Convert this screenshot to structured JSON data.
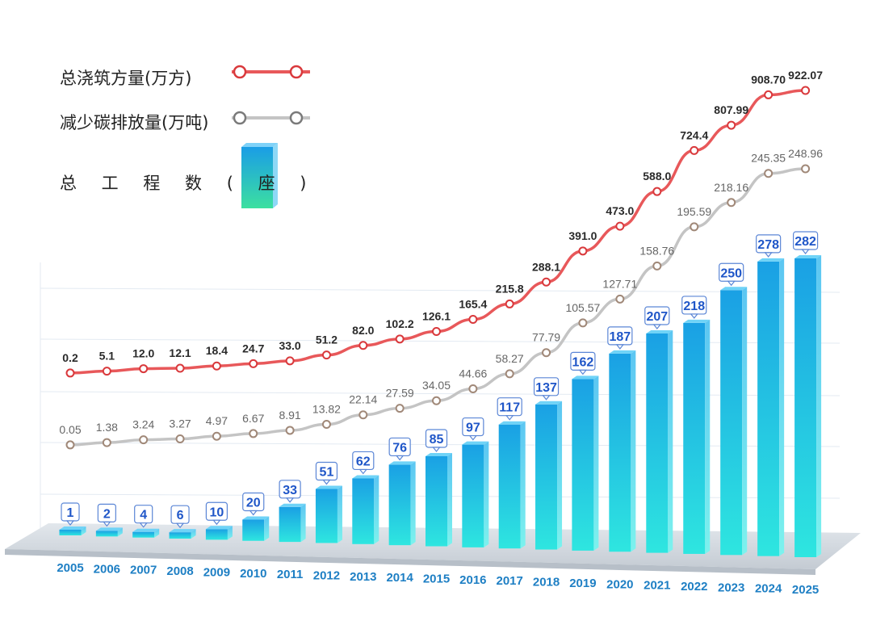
{
  "legend": {
    "pour_label": "总浇筑方量(万方)",
    "carbon_label": "减少碳排放量(万吨)",
    "projects_label": "总 工 程 数 ( 座 )"
  },
  "colors": {
    "pour_line": "#e8585a",
    "carbon_line": "#c4c4c4",
    "bar_top": "#1aa0e4",
    "bar_bottom": "#2ee6e0",
    "bar_label": "#1f56c8",
    "year_label": "#1e7fc4",
    "floor": "#cfd5dc"
  },
  "chart_data": {
    "type": "bar",
    "categories": [
      "2005",
      "2006",
      "2007",
      "2008",
      "2009",
      "2010",
      "2011",
      "2012",
      "2013",
      "2014",
      "2015",
      "2016",
      "2017",
      "2018",
      "2019",
      "2020",
      "2021",
      "2022",
      "2023",
      "2024",
      "2025"
    ],
    "series": [
      {
        "name": "总工程数(座)",
        "type": "bar",
        "values": [
          1,
          2,
          4,
          6,
          10,
          20,
          33,
          51,
          62,
          76,
          85,
          97,
          117,
          137,
          162,
          187,
          207,
          218,
          250,
          278,
          282
        ],
        "labels": [
          "1",
          "2",
          "4",
          "6",
          "10",
          "20",
          "33",
          "51",
          "62",
          "76",
          "85",
          "97",
          "117",
          "137",
          "162",
          "187",
          "207",
          "218",
          "250",
          "278",
          "282"
        ]
      },
      {
        "name": "总浇筑方量(万方)",
        "type": "line",
        "values": [
          0.2,
          5.1,
          12.0,
          12.1,
          18.4,
          24.7,
          33.0,
          51.2,
          82.0,
          102.2,
          126.1,
          165.4,
          215.8,
          288.1,
          391.0,
          473.0,
          588.0,
          724.4,
          807.99,
          908.7,
          922.07
        ],
        "labels": [
          "0.2",
          "5.1",
          "12.0",
          "12.1",
          "18.4",
          "24.7",
          "33.0",
          "51.2",
          "82.0",
          "102.2",
          "126.1",
          "165.4",
          "215.8",
          "288.1",
          "391.0",
          "473.0",
          "588.0",
          "724.4",
          "807.99",
          "908.70",
          "922.07"
        ]
      },
      {
        "name": "减少碳排放量(万吨)",
        "type": "line",
        "values": [
          0.05,
          1.38,
          3.24,
          3.27,
          4.97,
          6.67,
          8.91,
          13.82,
          22.14,
          27.59,
          34.05,
          44.66,
          58.27,
          77.79,
          105.57,
          127.71,
          158.76,
          195.59,
          218.16,
          245.35,
          248.96
        ],
        "labels": [
          "0.05",
          "1.38",
          "3.24",
          "3.27",
          "4.97",
          "6.67",
          "8.91",
          "13.82",
          "22.14",
          "27.59",
          "34.05",
          "44.66",
          "58.27",
          "77.79",
          "105.57",
          "127.71",
          "158.76",
          "195.59",
          "218.16",
          "245.35",
          "248.96"
        ]
      }
    ],
    "legend_position": "top-left",
    "grid": true
  }
}
